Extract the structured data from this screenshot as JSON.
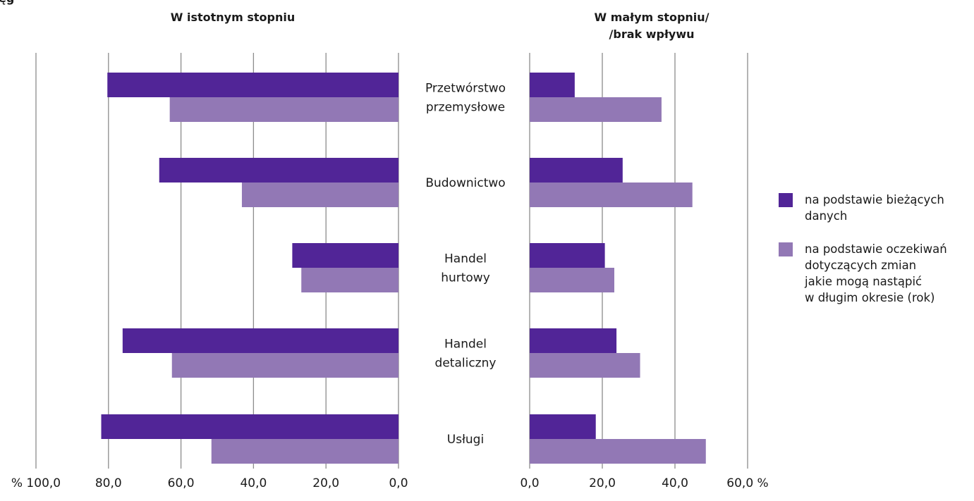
{
  "chart_data": {
    "type": "bar",
    "orientation": "horizontal",
    "clipped_header_text": "ęg",
    "categories": [
      "Przetwórstwo\nprzemysłowe",
      "Budownictwo",
      "Handel\nhurtowy",
      "Handel\ndetaliczny",
      "Usługi"
    ],
    "panels": [
      {
        "title": "W istotnym stopniu",
        "direction": "reversed",
        "xlim": [
          0,
          100
        ],
        "ticks": [
          "0,0",
          "20,0",
          "40,0",
          "60,0",
          "80,0",
          "% 100,0"
        ],
        "tick_values": [
          0,
          20,
          40,
          60,
          80,
          100
        ],
        "series": [
          {
            "name": "na podstawie bieżących danych",
            "values": [
              80.3,
              66.0,
              29.3,
              76.1,
              82.0
            ]
          },
          {
            "name": "na podstawie oczekiwań dotyczących zmian jakie mogą nastąpić w długim okresie (rok)",
            "values": [
              63.1,
              43.2,
              26.8,
              62.5,
              51.6
            ]
          }
        ]
      },
      {
        "title": "W małym stopniu/\n/brak wpływu",
        "direction": "normal",
        "xlim": [
          0,
          60
        ],
        "ticks": [
          "0,0",
          "20,0",
          "40,0",
          "60,0 %"
        ],
        "tick_values": [
          0,
          20,
          40,
          60
        ],
        "series": [
          {
            "name": "na podstawie bieżących danych",
            "values": [
              12.4,
              25.6,
              20.7,
              23.9,
              18.2
            ]
          },
          {
            "name": "na podstawie oczekiwań dotyczących zmian jakie mogą nastąpić w długim okresie (rok)",
            "values": [
              36.3,
              44.8,
              23.3,
              30.4,
              48.5
            ]
          }
        ]
      }
    ],
    "legend": [
      {
        "label": "na podstawie bieżących\ndanych",
        "color": "#512597"
      },
      {
        "label": "na podstawie oczekiwań\ndotyczących zmian\njakie mogą nastąpić\nw długim okresie (rok)",
        "color": "#9278b5"
      }
    ],
    "colors": {
      "series1": "#512597",
      "series2": "#9278b5",
      "grid": "#8c8c8c"
    },
    "grid": true,
    "legend_position": "right"
  }
}
